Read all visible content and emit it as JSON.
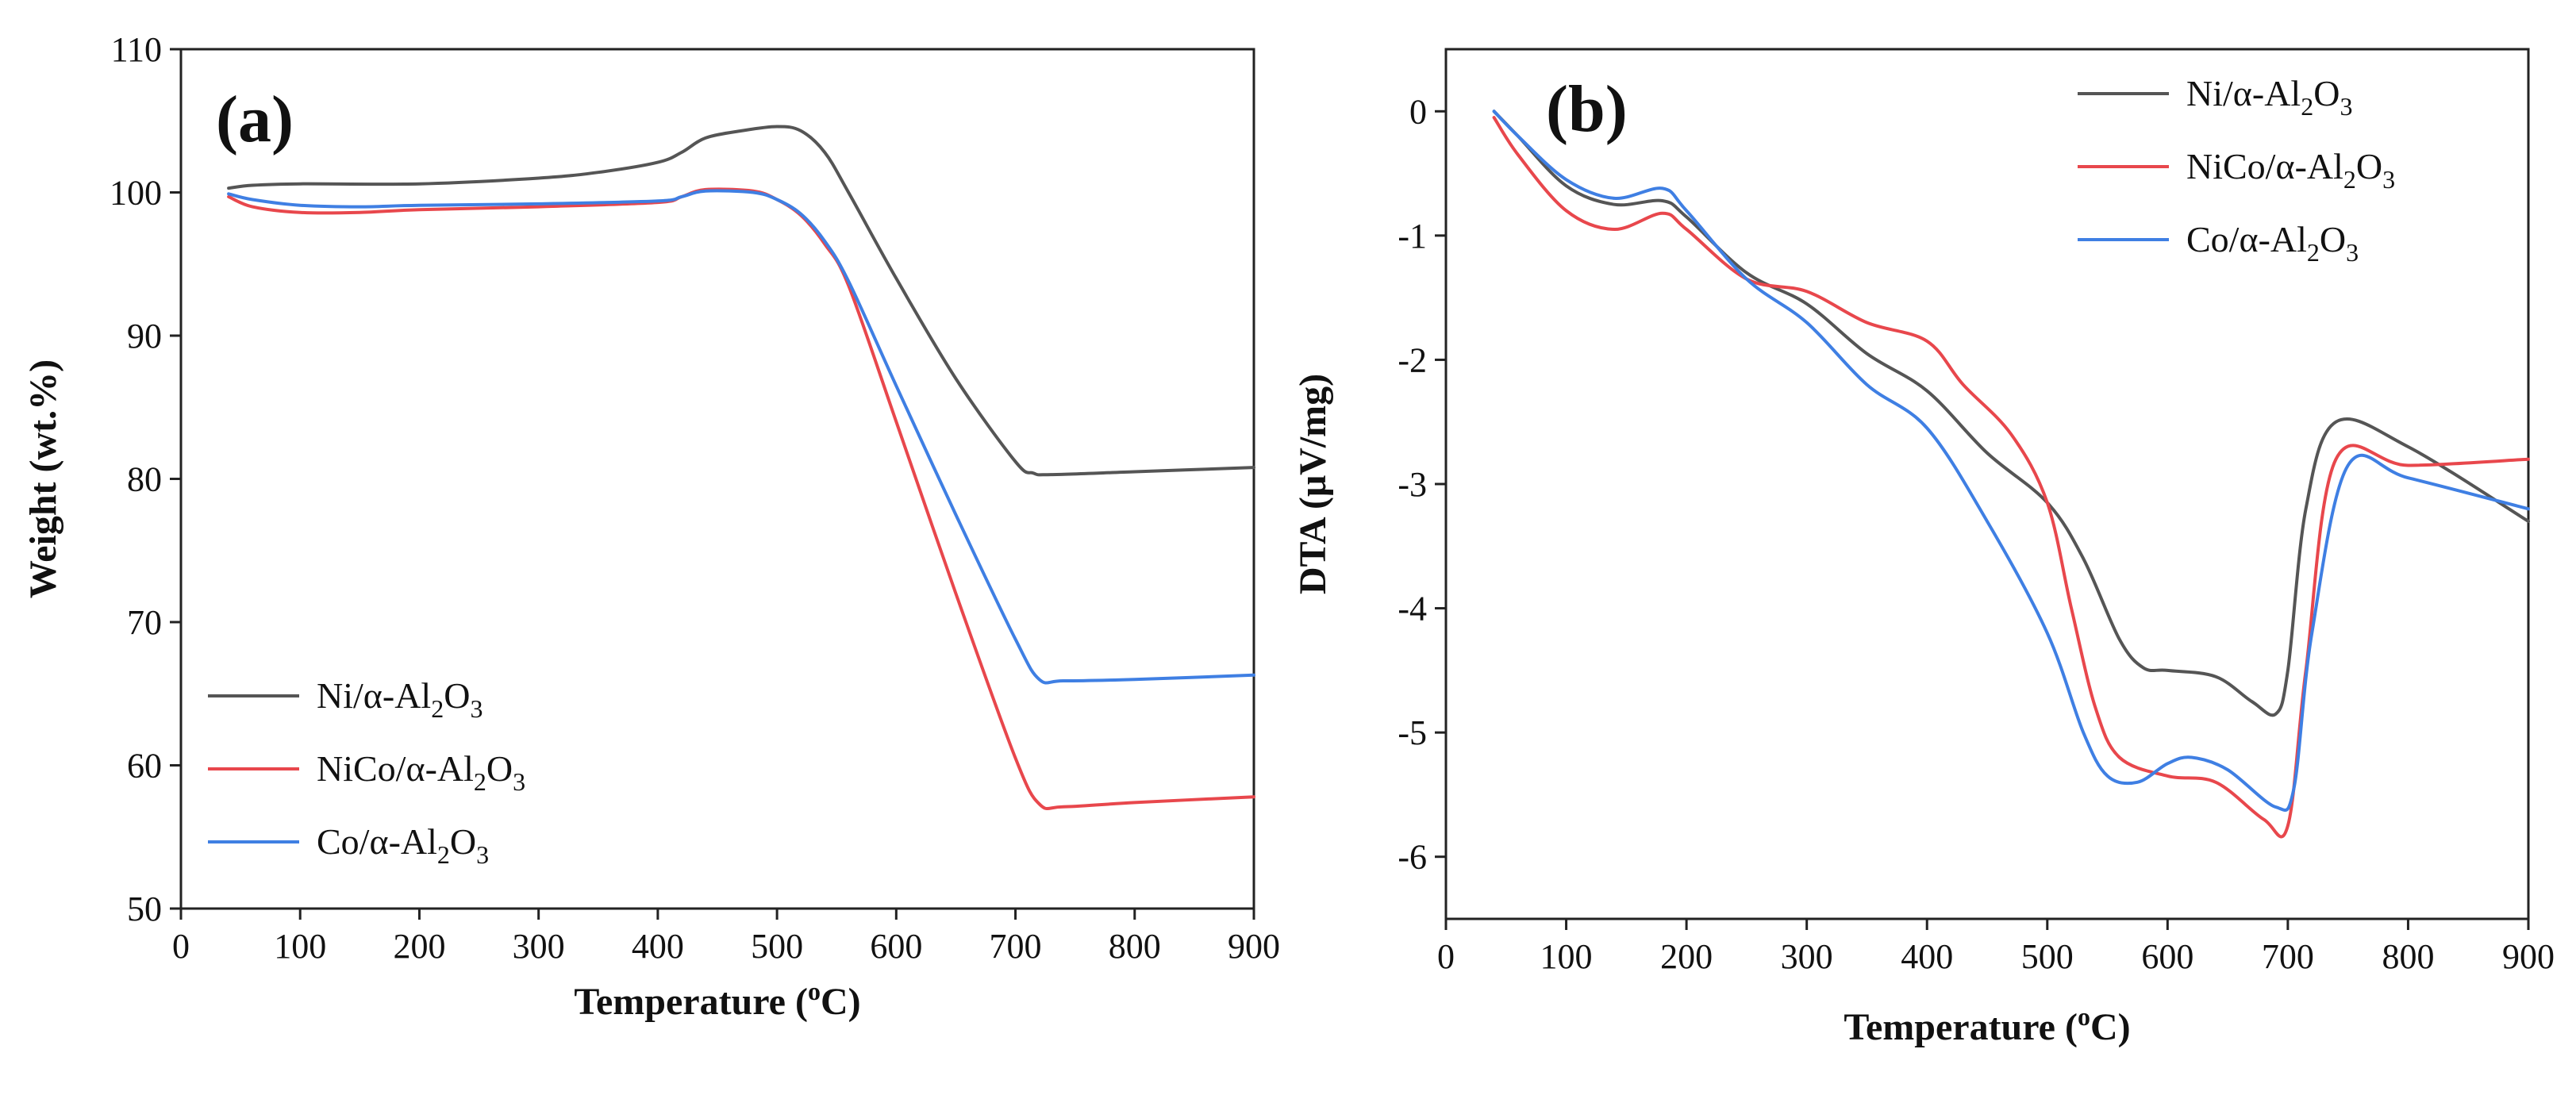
{
  "chart_data": [
    {
      "type": "line",
      "panel_label": "(a)",
      "xlabel": "Temperature (",
      "xlabel_sup": "o",
      "xlabel_end": "C)",
      "ylabel": "Weight (wt.%)",
      "xlim": [
        0,
        900
      ],
      "ylim": [
        50,
        110
      ],
      "xticks": [
        0,
        100,
        200,
        300,
        400,
        500,
        600,
        700,
        800,
        900
      ],
      "yticks": [
        50,
        60,
        70,
        80,
        90,
        100,
        110
      ],
      "legend_position": "lower-left",
      "series": [
        {
          "name": "Ni/α-Al2O3",
          "label_parts": [
            "Ni/α-Al",
            "2",
            "O",
            "3"
          ],
          "color": "#555555",
          "x": [
            40,
            60,
            100,
            200,
            300,
            350,
            400,
            420,
            440,
            470,
            500,
            520,
            540,
            560,
            600,
            650,
            700,
            715,
            730,
            800,
            900
          ],
          "y": [
            100.3,
            100.5,
            100.6,
            100.6,
            101.0,
            101.4,
            102.1,
            102.8,
            103.8,
            104.3,
            104.6,
            104.3,
            102.8,
            100.0,
            94.0,
            87.0,
            81.2,
            80.4,
            80.3,
            80.5,
            80.8
          ]
        },
        {
          "name": "NiCo/α-Al2O3",
          "label_parts": [
            "NiCo/α-Al",
            "2",
            "O",
            "3"
          ],
          "color": "#e8474c",
          "x": [
            40,
            60,
            100,
            150,
            200,
            300,
            400,
            420,
            440,
            480,
            500,
            520,
            540,
            560,
            600,
            650,
            700,
            720,
            740,
            800,
            900
          ],
          "y": [
            99.7,
            99.0,
            98.6,
            98.6,
            98.8,
            99.0,
            99.3,
            99.7,
            100.2,
            100.1,
            99.5,
            98.4,
            96.4,
            93.5,
            84.0,
            72.0,
            60.5,
            57.3,
            57.1,
            57.4,
            57.8
          ]
        },
        {
          "name": "Co/α-Al2O3",
          "label_parts": [
            "Co/α-Al",
            "2",
            "O",
            "3"
          ],
          "color": "#3f7fe3",
          "x": [
            40,
            60,
            100,
            150,
            200,
            300,
            400,
            420,
            440,
            480,
            500,
            520,
            540,
            560,
            600,
            650,
            700,
            720,
            740,
            800,
            900
          ],
          "y": [
            99.9,
            99.5,
            99.1,
            99.0,
            99.1,
            99.2,
            99.4,
            99.7,
            100.1,
            100.0,
            99.5,
            98.5,
            96.6,
            93.8,
            86.5,
            77.5,
            68.8,
            66.0,
            65.9,
            66.0,
            66.3
          ]
        }
      ]
    },
    {
      "type": "line",
      "panel_label": "(b)",
      "xlabel": "Temperature (",
      "xlabel_sup": "o",
      "xlabel_end": "C)",
      "ylabel": "DTA (μV/mg)",
      "xlim": [
        0,
        900
      ],
      "ylim": [
        -6.5,
        0.5
      ],
      "xticks": [
        0,
        100,
        200,
        300,
        400,
        500,
        600,
        700,
        800,
        900
      ],
      "yticks": [
        0,
        -1,
        -2,
        -3,
        -4,
        -5,
        -6
      ],
      "legend_position": "top-right",
      "series": [
        {
          "name": "Ni/α-Al2O3",
          "label_parts": [
            "Ni/α-Al",
            "2",
            "O",
            "3"
          ],
          "color": "#555555",
          "x": [
            40,
            60,
            100,
            140,
            180,
            200,
            250,
            300,
            350,
            400,
            450,
            500,
            530,
            560,
            580,
            600,
            640,
            670,
            690,
            700,
            715,
            740,
            800,
            900
          ],
          "y": [
            0.0,
            -0.2,
            -0.6,
            -0.75,
            -0.72,
            -0.85,
            -1.3,
            -1.55,
            -1.95,
            -2.25,
            -2.75,
            -3.15,
            -3.6,
            -4.25,
            -4.48,
            -4.5,
            -4.55,
            -4.75,
            -4.85,
            -4.5,
            -3.2,
            -2.5,
            -2.7,
            -3.3
          ]
        },
        {
          "name": "NiCo/α-Al2O3",
          "label_parts": [
            "NiCo/α-Al",
            "2",
            "O",
            "3"
          ],
          "color": "#e8474c",
          "x": [
            40,
            60,
            100,
            140,
            180,
            200,
            250,
            300,
            350,
            400,
            430,
            470,
            500,
            520,
            540,
            560,
            600,
            640,
            680,
            700,
            715,
            740,
            800,
            900
          ],
          "y": [
            -0.05,
            -0.35,
            -0.8,
            -0.95,
            -0.82,
            -0.95,
            -1.35,
            -1.45,
            -1.7,
            -1.85,
            -2.2,
            -2.6,
            -3.15,
            -4.0,
            -4.8,
            -5.2,
            -5.35,
            -5.4,
            -5.7,
            -5.75,
            -4.5,
            -2.8,
            -2.85,
            -2.8
          ]
        },
        {
          "name": "Co/α-Al2O3",
          "label_parts": [
            "Co/α-Al",
            "2",
            "O",
            "3"
          ],
          "color": "#3f7fe3",
          "x": [
            40,
            60,
            100,
            140,
            180,
            200,
            250,
            300,
            350,
            400,
            450,
            500,
            530,
            550,
            575,
            600,
            620,
            650,
            690,
            705,
            720,
            750,
            800,
            900
          ],
          "y": [
            0.0,
            -0.2,
            -0.55,
            -0.7,
            -0.62,
            -0.8,
            -1.35,
            -1.7,
            -2.2,
            -2.55,
            -3.3,
            -4.2,
            -5.0,
            -5.35,
            -5.4,
            -5.25,
            -5.2,
            -5.3,
            -5.6,
            -5.45,
            -4.2,
            -2.85,
            -2.95,
            -3.2
          ]
        }
      ]
    }
  ]
}
